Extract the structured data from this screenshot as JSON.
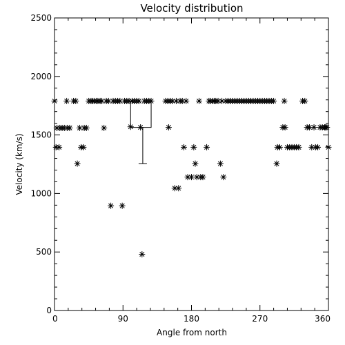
{
  "chart_data": {
    "type": "scatter",
    "title": "Velocity distribution",
    "xlabel": "Angle from north",
    "ylabel": "Velocity (km/s)",
    "xlim": [
      0,
      360
    ],
    "ylim": [
      0,
      2500
    ],
    "xticks": [
      0,
      90,
      180,
      270,
      360
    ],
    "yticks": [
      0,
      500,
      1000,
      1500,
      2000,
      2500
    ],
    "grid": false,
    "marker": "asterisk",
    "points": [
      [
        0,
        1790
      ],
      [
        2,
        1395
      ],
      [
        3,
        1560
      ],
      [
        6,
        1395
      ],
      [
        7,
        1560
      ],
      [
        10,
        1560
      ],
      [
        13,
        1560
      ],
      [
        16,
        1790
      ],
      [
        17,
        1560
      ],
      [
        20,
        1560
      ],
      [
        25,
        1790
      ],
      [
        28,
        1790
      ],
      [
        30,
        1255
      ],
      [
        33,
        1560
      ],
      [
        35,
        1395
      ],
      [
        38,
        1395
      ],
      [
        39,
        1560
      ],
      [
        42,
        1560
      ],
      [
        45,
        1790
      ],
      [
        48,
        1790
      ],
      [
        50,
        1790
      ],
      [
        52,
        1790
      ],
      [
        55,
        1790
      ],
      [
        57,
        1790
      ],
      [
        60,
        1790
      ],
      [
        62,
        1790
      ],
      [
        65,
        1560
      ],
      [
        68,
        1790
      ],
      [
        71,
        1790
      ],
      [
        74,
        895
      ],
      [
        77,
        1790
      ],
      [
        80,
        1790
      ],
      [
        83,
        1790
      ],
      [
        86,
        1790
      ],
      [
        89,
        895
      ],
      [
        92,
        1790
      ],
      [
        95,
        1790
      ],
      [
        98,
        1790
      ],
      [
        100,
        1570
      ],
      [
        102,
        1790
      ],
      [
        105,
        1790
      ],
      [
        108,
        1790
      ],
      [
        111,
        1790
      ],
      [
        113,
        1565
      ],
      [
        115,
        480
      ],
      [
        118,
        1790
      ],
      [
        121,
        1790
      ],
      [
        124,
        1790
      ],
      [
        127,
        1790
      ],
      [
        146,
        1790
      ],
      [
        149,
        1790
      ],
      [
        150,
        1565
      ],
      [
        152,
        1790
      ],
      [
        155,
        1790
      ],
      [
        158,
        1045
      ],
      [
        160,
        1790
      ],
      [
        163,
        1045
      ],
      [
        165,
        1790
      ],
      [
        168,
        1790
      ],
      [
        170,
        1395
      ],
      [
        173,
        1790
      ],
      [
        175,
        1140
      ],
      [
        180,
        1140
      ],
      [
        183,
        1395
      ],
      [
        185,
        1255
      ],
      [
        187,
        1140
      ],
      [
        190,
        1790
      ],
      [
        192,
        1140
      ],
      [
        195,
        1140
      ],
      [
        200,
        1395
      ],
      [
        203,
        1790
      ],
      [
        205,
        1790
      ],
      [
        208,
        1790
      ],
      [
        210,
        1790
      ],
      [
        212,
        1790
      ],
      [
        215,
        1790
      ],
      [
        218,
        1255
      ],
      [
        220,
        1790
      ],
      [
        222,
        1140
      ],
      [
        225,
        1790
      ],
      [
        228,
        1790
      ],
      [
        231,
        1790
      ],
      [
        234,
        1790
      ],
      [
        237,
        1790
      ],
      [
        240,
        1790
      ],
      [
        243,
        1790
      ],
      [
        246,
        1790
      ],
      [
        249,
        1790
      ],
      [
        252,
        1790
      ],
      [
        255,
        1790
      ],
      [
        258,
        1790
      ],
      [
        261,
        1790
      ],
      [
        264,
        1790
      ],
      [
        267,
        1790
      ],
      [
        270,
        1790
      ],
      [
        273,
        1790
      ],
      [
        276,
        1790
      ],
      [
        279,
        1790
      ],
      [
        282,
        1790
      ],
      [
        285,
        1790
      ],
      [
        288,
        1790
      ],
      [
        292,
        1255
      ],
      [
        293,
        1395
      ],
      [
        296,
        1395
      ],
      [
        300,
        1565
      ],
      [
        302,
        1790
      ],
      [
        303,
        1565
      ],
      [
        306,
        1395
      ],
      [
        309,
        1395
      ],
      [
        312,
        1395
      ],
      [
        315,
        1395
      ],
      [
        318,
        1395
      ],
      [
        321,
        1395
      ],
      [
        326,
        1790
      ],
      [
        329,
        1790
      ],
      [
        332,
        1565
      ],
      [
        335,
        1565
      ],
      [
        338,
        1395
      ],
      [
        341,
        1565
      ],
      [
        343,
        1395
      ],
      [
        346,
        1395
      ],
      [
        349,
        1565
      ],
      [
        352,
        1565
      ],
      [
        355,
        1565
      ],
      [
        356,
        1565
      ],
      [
        358,
        1565
      ],
      [
        360,
        1395
      ]
    ],
    "annotation": {
      "box_x": [
        100,
        127
      ],
      "box_y": [
        1565,
        1790
      ],
      "errorbar_x": 116,
      "errorbar_y": [
        1255,
        1565
      ]
    }
  }
}
